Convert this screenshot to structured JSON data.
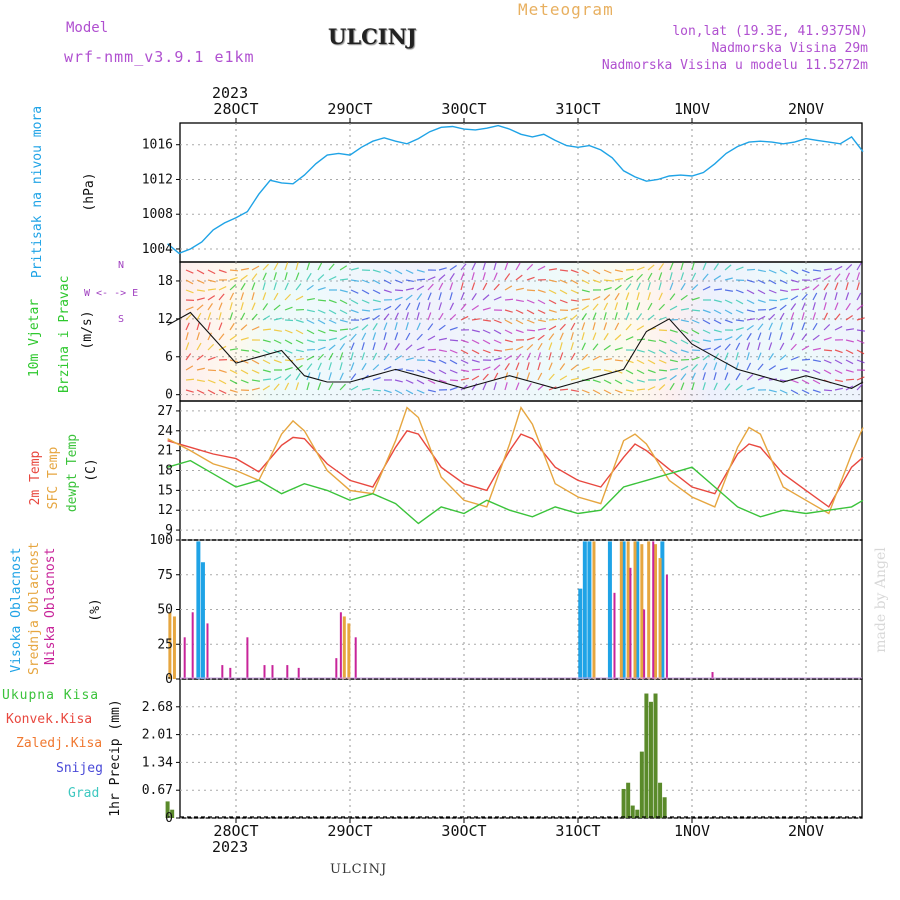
{
  "header": {
    "model_label": "Model",
    "model_name": "wrf-nmm_v3.9.1 e1km",
    "station": "ULCINJ",
    "product": "Meteogram",
    "lonlat": "lon,lat (19.3E, 41.9375N)",
    "elevation": "Nadmorska Visina 29m",
    "model_elevation": "Nadmorska Visina u modelu 11.5272m",
    "footer_station": "ULCINJ",
    "credit": "made by Angel"
  },
  "colors": {
    "pressure": "#1fa3e6",
    "temp2m": "#e8483f",
    "sfc_temp": "#e6a640",
    "dewpt": "#3bc33b",
    "cloud_high": "#1fa3e6",
    "cloud_mid": "#e6a640",
    "cloud_low": "#c8249a",
    "precip_total": "#5a8a2a",
    "precip_conv": "#e8483f",
    "precip_strat": "#f07830",
    "precip_snow": "#4a4ad8",
    "precip_hail": "#3ec8c0",
    "wind_label": "#2ec82e",
    "wind_compass": "#a040c0",
    "purple_text": "#b050d0",
    "orange_text": "#e8b060"
  },
  "time_axis": {
    "top_year": "2023",
    "bottom_year": "2023",
    "labels": [
      "28OCT",
      "29OCT",
      "30OCT",
      "31OCT",
      "1NOV",
      "2NOV"
    ]
  },
  "panels": {
    "pressure": {
      "title": "Pritisak na nivou mora",
      "unit": "(hPa)",
      "ticks": [
        "1004",
        "1008",
        "1012",
        "1016"
      ]
    },
    "wind": {
      "title1": "10m Vjetar",
      "title2": "Brzina i Pravac",
      "unit": "(m/s)",
      "ticks": [
        "0",
        "6",
        "12",
        "18"
      ],
      "compass": "W <- -> E",
      "compass_n": "N",
      "compass_s": "S"
    },
    "temp": {
      "label_2m": "2m Temp",
      "label_sfc": "SFC Temp",
      "label_dew": "dewpt Temp",
      "unit": "(C)",
      "ticks": [
        "9",
        "12",
        "15",
        "18",
        "21",
        "24",
        "27"
      ]
    },
    "cloud": {
      "label_high": "Visoka Oblacnost",
      "label_mid": "Srednja Oblacnost",
      "label_low": "Niska Oblacnost",
      "unit": "(%)",
      "ticks": [
        "0",
        "25",
        "50",
        "75",
        "100"
      ]
    },
    "precip": {
      "label_total": "Ukupna Kisa",
      "label_conv": "Konvek.Kisa",
      "label_strat": "Zaledj.Kisa",
      "label_snow": "Snijeg",
      "label_hail": "Grad",
      "unit": "1hr Precip (mm)",
      "ticks": [
        "0",
        "0.67",
        "1.34",
        "2.01",
        "2.68"
      ]
    }
  },
  "chart_data": [
    {
      "type": "line",
      "title": "Pritisak na nivou mora",
      "ylabel": "(hPa)",
      "ylim": [
        1002.5,
        1018.5
      ],
      "x_unit": "days from 28OCT 00UTC",
      "series": [
        {
          "name": "Pritisak na nivou mora",
          "x": [
            -0.6,
            -0.5,
            -0.4,
            -0.3,
            -0.2,
            -0.1,
            0,
            0.1,
            0.2,
            0.3,
            0.4,
            0.5,
            0.6,
            0.7,
            0.8,
            0.9,
            1.0,
            1.1,
            1.2,
            1.3,
            1.4,
            1.5,
            1.6,
            1.7,
            1.8,
            1.9,
            2.0,
            2.1,
            2.2,
            2.3,
            2.4,
            2.5,
            2.6,
            2.7,
            2.8,
            2.9,
            3.0,
            3.1,
            3.2,
            3.3,
            3.4,
            3.5,
            3.6,
            3.7,
            3.8,
            3.9,
            4.0,
            4.1,
            4.2,
            4.3,
            4.4,
            4.5,
            4.6,
            4.7,
            4.8,
            4.9,
            5.0,
            5.1,
            5.2,
            5.3,
            5.4,
            5.5
          ],
          "values": [
            1004.6,
            1003.5,
            1004.0,
            1004.8,
            1006.2,
            1007.0,
            1007.6,
            1008.3,
            1010.3,
            1011.9,
            1011.6,
            1011.5,
            1012.5,
            1013.8,
            1014.8,
            1015.0,
            1014.8,
            1015.7,
            1016.4,
            1016.8,
            1016.4,
            1016.1,
            1016.7,
            1017.5,
            1018.0,
            1018.1,
            1017.8,
            1017.7,
            1017.9,
            1018.2,
            1017.8,
            1017.2,
            1016.9,
            1017.2,
            1016.5,
            1015.9,
            1015.7,
            1015.9,
            1015.4,
            1014.5,
            1013.0,
            1012.3,
            1011.8,
            1012.0,
            1012.4,
            1012.5,
            1012.4,
            1012.8,
            1013.8,
            1015.0,
            1015.8,
            1016.3,
            1016.4,
            1016.3,
            1016.1,
            1016.3,
            1016.7,
            1016.5,
            1016.3,
            1016.1,
            1016.9,
            1015.2
          ]
        }
      ]
    },
    {
      "type": "line",
      "title": "10m Vjetar Brzina i Pravac",
      "ylabel": "(m/s)",
      "ylim": [
        -1,
        21
      ],
      "x_unit": "days from 28OCT 00UTC",
      "series": [
        {
          "name": "10m Vjetar",
          "x": [
            -0.6,
            -0.4,
            -0.2,
            0,
            0.2,
            0.4,
            0.6,
            0.8,
            1.0,
            1.2,
            1.4,
            1.6,
            1.8,
            2.0,
            2.2,
            2.4,
            2.6,
            2.8,
            3.0,
            3.2,
            3.4,
            3.6,
            3.8,
            4.0,
            4.2,
            4.4,
            4.6,
            4.8,
            5.0,
            5.2,
            5.4,
            5.5
          ],
          "values": [
            11,
            13,
            9,
            5,
            6,
            7,
            3,
            2,
            2,
            3,
            4,
            3,
            2,
            1,
            2,
            3,
            2,
            1,
            2,
            3,
            4,
            10,
            12,
            8,
            6,
            4,
            3,
            2,
            3,
            2,
            1,
            2
          ]
        }
      ]
    },
    {
      "type": "line",
      "title": "2m Temp / SFC Temp / dewpt Temp",
      "ylabel": "(C)",
      "ylim": [
        7.5,
        28.5
      ],
      "x_unit": "days from 28OCT 00UTC",
      "series": [
        {
          "name": "2m Temp",
          "x": [
            -0.6,
            -0.4,
            -0.2,
            0,
            0.2,
            0.4,
            0.5,
            0.6,
            0.8,
            1.0,
            1.2,
            1.4,
            1.5,
            1.6,
            1.8,
            2.0,
            2.2,
            2.4,
            2.5,
            2.6,
            2.8,
            3.0,
            3.2,
            3.4,
            3.5,
            3.6,
            3.8,
            4.0,
            4.2,
            4.4,
            4.5,
            4.6,
            4.8,
            5.0,
            5.2,
            5.4,
            5.5
          ],
          "values": [
            22.5,
            21.5,
            20.5,
            19.8,
            17.8,
            21.8,
            23.0,
            22.8,
            19.0,
            16.5,
            15.5,
            21.5,
            24.0,
            23.5,
            18.5,
            16.0,
            15.0,
            21.0,
            23.5,
            22.8,
            18.5,
            16.5,
            15.5,
            20.0,
            22.0,
            21.0,
            18.2,
            15.5,
            14.5,
            20.5,
            22.0,
            21.5,
            17.5,
            15.0,
            12.5,
            18.5,
            20.0
          ]
        },
        {
          "name": "SFC Temp",
          "x": [
            -0.6,
            -0.4,
            -0.2,
            0,
            0.2,
            0.4,
            0.5,
            0.6,
            0.8,
            1.0,
            1.2,
            1.4,
            1.5,
            1.6,
            1.8,
            2.0,
            2.2,
            2.4,
            2.5,
            2.6,
            2.8,
            3.0,
            3.2,
            3.4,
            3.5,
            3.6,
            3.8,
            4.0,
            4.2,
            4.4,
            4.5,
            4.6,
            4.8,
            5.0,
            5.2,
            5.4,
            5.5
          ],
          "values": [
            22.8,
            21.0,
            19.0,
            18.0,
            16.5,
            23.5,
            25.5,
            24.0,
            18.0,
            15.0,
            14.5,
            22.5,
            27.5,
            26.0,
            17.0,
            13.5,
            12.5,
            22.0,
            27.5,
            25.0,
            16.0,
            14.0,
            13.0,
            22.5,
            23.5,
            22.0,
            16.5,
            14.0,
            12.5,
            21.5,
            24.5,
            23.5,
            15.5,
            13.5,
            11.5,
            20.5,
            24.5
          ]
        },
        {
          "name": "dewpt Temp",
          "x": [
            -0.6,
            -0.4,
            -0.2,
            0,
            0.2,
            0.4,
            0.6,
            0.8,
            1.0,
            1.2,
            1.4,
            1.6,
            1.8,
            2.0,
            2.2,
            2.4,
            2.6,
            2.8,
            3.0,
            3.2,
            3.4,
            3.6,
            3.8,
            4.0,
            4.2,
            4.4,
            4.6,
            4.8,
            5.0,
            5.2,
            5.4,
            5.5
          ],
          "values": [
            18.5,
            19.5,
            17.5,
            15.5,
            16.5,
            14.5,
            16.0,
            15.0,
            13.5,
            14.5,
            13.0,
            10.0,
            12.5,
            11.5,
            13.5,
            12.0,
            11.0,
            12.5,
            11.5,
            12.0,
            15.5,
            16.5,
            17.5,
            18.5,
            15.5,
            12.5,
            11.0,
            12.0,
            11.5,
            12.0,
            12.5,
            13.5
          ]
        }
      ]
    },
    {
      "type": "bar",
      "title": "Visoka / Srednja / Niska Oblacnost",
      "ylabel": "(%)",
      "ylim": [
        0,
        100
      ],
      "x_unit": "days from 28OCT 00UTC",
      "series": [
        {
          "name": "Visoka Oblacnost",
          "x": [
            -0.33,
            -0.29,
            3.02,
            3.06,
            3.1,
            3.28,
            3.4,
            3.52,
            3.74
          ],
          "values": [
            99,
            84,
            65,
            99,
            99,
            99,
            99,
            99,
            99
          ]
        },
        {
          "name": "Srednja Oblacnost",
          "x": [
            -0.58,
            -0.54,
            0.95,
            0.99,
            3.14,
            3.38,
            3.44,
            3.5,
            3.56,
            3.62,
            3.68,
            3.72
          ],
          "values": [
            48,
            45,
            45,
            40,
            99,
            99,
            99,
            99,
            97,
            99,
            97,
            87
          ]
        },
        {
          "name": "Niska Oblacnost",
          "x": [
            -0.45,
            -0.38,
            -0.25,
            -0.12,
            -0.05,
            0.1,
            0.25,
            0.32,
            0.45,
            0.55,
            0.88,
            0.92,
            1.05,
            3.32,
            3.46,
            3.58,
            3.66,
            3.78,
            4.18
          ],
          "values": [
            30,
            48,
            40,
            10,
            8,
            30,
            10,
            10,
            10,
            8,
            15,
            48,
            30,
            62,
            80,
            50,
            99,
            75,
            5
          ]
        }
      ]
    },
    {
      "type": "bar",
      "title": "1hr Precip",
      "ylabel": "1hr Precip (mm)",
      "ylim": [
        0,
        3.35
      ],
      "x_unit": "days from 28OCT 00UTC",
      "series": [
        {
          "name": "Ukupna Kisa",
          "x": [
            -0.6,
            -0.56,
            3.4,
            3.44,
            3.48,
            3.52,
            3.56,
            3.6,
            3.64,
            3.68,
            3.72,
            3.76
          ],
          "values": [
            0.4,
            0.2,
            0.7,
            0.85,
            0.3,
            0.2,
            1.6,
            3.0,
            2.8,
            3.0,
            0.85,
            0.5
          ]
        }
      ]
    }
  ]
}
